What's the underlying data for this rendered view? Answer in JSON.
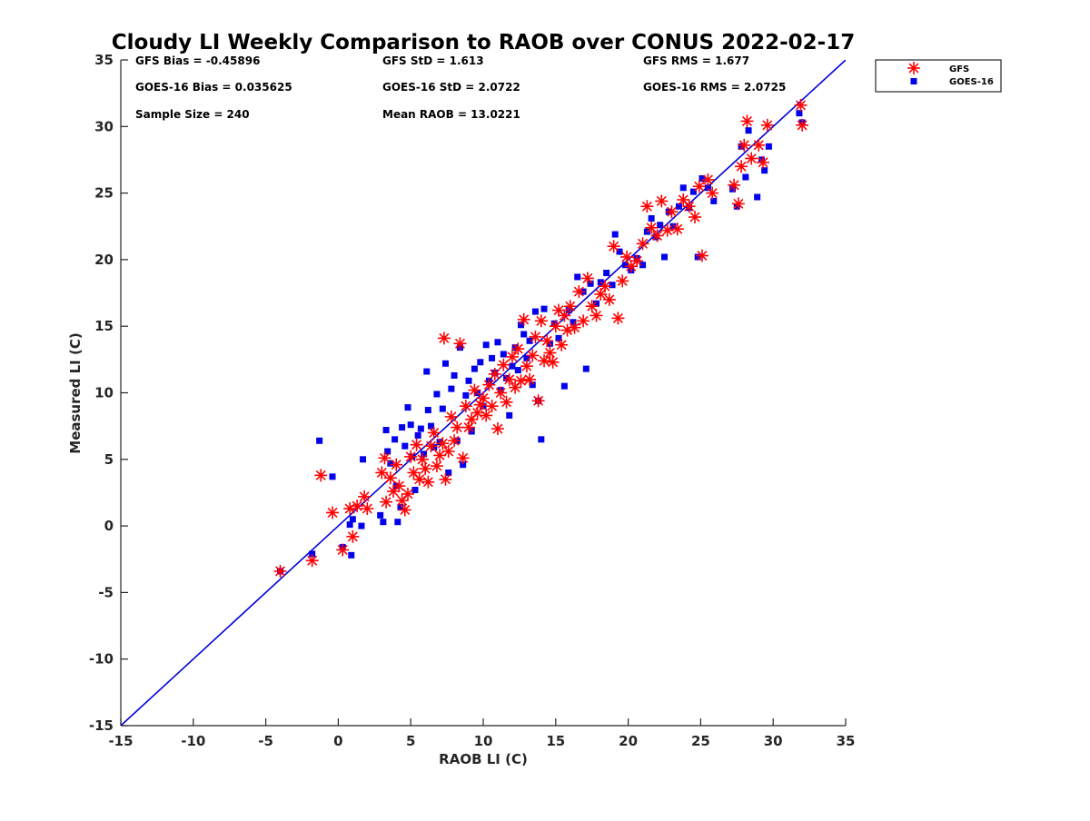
{
  "chart_data": {
    "type": "scatter",
    "title": "Cloudy LI Weekly Comparison to RAOB over CONUS 2022-02-17",
    "xlabel": "RAOB LI (C)",
    "ylabel": "Measured LI (C)",
    "xlim": [
      -15,
      35
    ],
    "ylim": [
      -15,
      35
    ],
    "xticks": [
      -15,
      -10,
      -5,
      0,
      5,
      10,
      15,
      20,
      25,
      30,
      35
    ],
    "yticks": [
      -15,
      -10,
      -5,
      0,
      5,
      10,
      15,
      20,
      25,
      30,
      35
    ],
    "grid": false,
    "legend_position": "top-right outside plot",
    "reference_line": {
      "from": [
        -15,
        -15
      ],
      "to": [
        35,
        35
      ],
      "color": "#0000dd"
    },
    "stats": {
      "gfs_bias": "GFS Bias = -0.45896",
      "goes_bias": "GOES-16 Bias = 0.035625",
      "sample_size": "Sample Size = 240",
      "gfs_std": "GFS StD = 1.613",
      "goes_std": "GOES-16 StD = 2.0722",
      "mean_raob": "Mean RAOB = 13.0221",
      "gfs_rms": "GFS RMS = 1.677",
      "goes_rms": "GOES-16 RMS = 2.0725"
    },
    "series": [
      {
        "name": "GFS",
        "marker": "asterisk",
        "color": "#ff0000",
        "points": [
          [
            -4,
            -3.4
          ],
          [
            -1.8,
            -2.6
          ],
          [
            0.3,
            -1.8
          ],
          [
            1,
            -0.8
          ],
          [
            -1.2,
            3.8
          ],
          [
            -0.4,
            1.0
          ],
          [
            0.8,
            1.3
          ],
          [
            1.3,
            1.5
          ],
          [
            1.8,
            2.2
          ],
          [
            2.0,
            1.3
          ],
          [
            3.0,
            4.0
          ],
          [
            3.2,
            5.1
          ],
          [
            3.3,
            1.8
          ],
          [
            3.6,
            3.6
          ],
          [
            3.8,
            2.6
          ],
          [
            4.0,
            4.6
          ],
          [
            4.2,
            3.0
          ],
          [
            4.4,
            1.9
          ],
          [
            4.6,
            1.2
          ],
          [
            4.8,
            2.4
          ],
          [
            5.0,
            5.2
          ],
          [
            5.2,
            4.0
          ],
          [
            5.4,
            6.1
          ],
          [
            5.6,
            3.5
          ],
          [
            5.8,
            5.0
          ],
          [
            6.0,
            4.3
          ],
          [
            6.2,
            3.3
          ],
          [
            6.4,
            6.0
          ],
          [
            6.6,
            7.0
          ],
          [
            6.8,
            4.5
          ],
          [
            7.0,
            5.3
          ],
          [
            7.2,
            6.2
          ],
          [
            7.3,
            14.1
          ],
          [
            7.4,
            3.5
          ],
          [
            7.6,
            5.6
          ],
          [
            7.8,
            8.2
          ],
          [
            8.0,
            6.4
          ],
          [
            8.2,
            7.4
          ],
          [
            8.4,
            13.7
          ],
          [
            8.6,
            5.1
          ],
          [
            8.8,
            9.0
          ],
          [
            9.0,
            7.4
          ],
          [
            9.2,
            8.0
          ],
          [
            9.4,
            10.2
          ],
          [
            9.6,
            8.5
          ],
          [
            9.8,
            9.1
          ],
          [
            10.0,
            9.6
          ],
          [
            10.2,
            8.3
          ],
          [
            10.4,
            10.6
          ],
          [
            10.6,
            9.0
          ],
          [
            10.8,
            11.4
          ],
          [
            11.0,
            7.3
          ],
          [
            11.2,
            10.0
          ],
          [
            11.4,
            12.1
          ],
          [
            11.6,
            9.3
          ],
          [
            11.8,
            11.0
          ],
          [
            12.0,
            12.7
          ],
          [
            12.2,
            10.4
          ],
          [
            12.4,
            13.3
          ],
          [
            12.6,
            10.9
          ],
          [
            12.8,
            15.5
          ],
          [
            13.0,
            12.0
          ],
          [
            13.2,
            11.0
          ],
          [
            13.4,
            12.8
          ],
          [
            13.6,
            14.2
          ],
          [
            13.8,
            9.4
          ],
          [
            14.0,
            15.4
          ],
          [
            14.2,
            12.4
          ],
          [
            14.4,
            13.9
          ],
          [
            14.6,
            13.0
          ],
          [
            14.8,
            12.3
          ],
          [
            15.0,
            15.0
          ],
          [
            15.2,
            16.2
          ],
          [
            15.4,
            13.6
          ],
          [
            15.6,
            15.8
          ],
          [
            15.8,
            14.7
          ],
          [
            16.0,
            16.5
          ],
          [
            16.3,
            14.9
          ],
          [
            16.6,
            17.6
          ],
          [
            16.9,
            15.4
          ],
          [
            17.2,
            18.6
          ],
          [
            17.5,
            16.5
          ],
          [
            17.8,
            15.8
          ],
          [
            18.1,
            17.4
          ],
          [
            18.4,
            18.0
          ],
          [
            18.7,
            17.0
          ],
          [
            19.0,
            21.0
          ],
          [
            19.3,
            15.6
          ],
          [
            19.6,
            18.4
          ],
          [
            19.9,
            20.2
          ],
          [
            20.2,
            19.5
          ],
          [
            20.6,
            19.9
          ],
          [
            21.0,
            21.2
          ],
          [
            21.3,
            24.0
          ],
          [
            21.6,
            22.4
          ],
          [
            22.0,
            21.8
          ],
          [
            22.3,
            24.4
          ],
          [
            22.7,
            22.2
          ],
          [
            23.0,
            23.6
          ],
          [
            23.4,
            22.3
          ],
          [
            23.8,
            24.5
          ],
          [
            24.2,
            24.0
          ],
          [
            24.6,
            23.2
          ],
          [
            24.9,
            25.5
          ],
          [
            25.1,
            20.3
          ],
          [
            25.5,
            26.0
          ],
          [
            25.8,
            25.0
          ],
          [
            27.3,
            25.6
          ],
          [
            27.6,
            24.2
          ],
          [
            27.8,
            27.0
          ],
          [
            28.0,
            28.6
          ],
          [
            28.2,
            30.4
          ],
          [
            28.5,
            27.6
          ],
          [
            29.0,
            28.6
          ],
          [
            29.3,
            27.3
          ],
          [
            29.6,
            30.1
          ],
          [
            31.9,
            31.6
          ],
          [
            32.0,
            30.1
          ]
        ]
      },
      {
        "name": "GOES-16",
        "marker": "square",
        "color": "#0000ee",
        "points": [
          [
            -4,
            -3.4
          ],
          [
            -1.8,
            -2.1
          ],
          [
            0.3,
            -1.6
          ],
          [
            0.9,
            -2.2
          ],
          [
            -1.3,
            6.4
          ],
          [
            -0.4,
            3.7
          ],
          [
            0.8,
            0.1
          ],
          [
            1.0,
            0.5
          ],
          [
            1.6,
            0.0
          ],
          [
            1.7,
            5.0
          ],
          [
            2.9,
            0.8
          ],
          [
            3.1,
            0.3
          ],
          [
            3.3,
            7.2
          ],
          [
            3.4,
            5.6
          ],
          [
            3.6,
            4.7
          ],
          [
            3.9,
            6.5
          ],
          [
            4.0,
            3.0
          ],
          [
            4.1,
            0.3
          ],
          [
            4.3,
            1.4
          ],
          [
            4.4,
            7.4
          ],
          [
            4.6,
            6.0
          ],
          [
            4.8,
            8.9
          ],
          [
            5.0,
            7.6
          ],
          [
            5.1,
            5.2
          ],
          [
            5.3,
            2.7
          ],
          [
            5.5,
            6.8
          ],
          [
            5.7,
            7.3
          ],
          [
            5.9,
            5.4
          ],
          [
            6.1,
            11.6
          ],
          [
            6.2,
            8.7
          ],
          [
            6.4,
            7.5
          ],
          [
            6.6,
            5.9
          ],
          [
            6.8,
            9.9
          ],
          [
            7.0,
            6.3
          ],
          [
            7.2,
            8.8
          ],
          [
            7.4,
            12.2
          ],
          [
            7.6,
            4.0
          ],
          [
            7.8,
            10.3
          ],
          [
            8.0,
            11.3
          ],
          [
            8.2,
            6.4
          ],
          [
            8.4,
            13.4
          ],
          [
            8.6,
            4.6
          ],
          [
            8.8,
            9.8
          ],
          [
            9.0,
            10.9
          ],
          [
            9.2,
            7.1
          ],
          [
            9.4,
            11.8
          ],
          [
            9.6,
            10.0
          ],
          [
            9.8,
            12.3
          ],
          [
            10.0,
            9.0
          ],
          [
            10.2,
            13.6
          ],
          [
            10.4,
            10.9
          ],
          [
            10.6,
            12.6
          ],
          [
            10.8,
            11.5
          ],
          [
            11.0,
            13.8
          ],
          [
            11.2,
            10.2
          ],
          [
            11.4,
            12.9
          ],
          [
            11.6,
            11.1
          ],
          [
            11.8,
            8.3
          ],
          [
            12.0,
            12.0
          ],
          [
            12.2,
            13.4
          ],
          [
            12.4,
            11.7
          ],
          [
            12.6,
            15.1
          ],
          [
            12.8,
            14.4
          ],
          [
            13.0,
            12.6
          ],
          [
            13.2,
            13.9
          ],
          [
            13.4,
            10.6
          ],
          [
            13.6,
            16.1
          ],
          [
            13.8,
            9.4
          ],
          [
            14.0,
            6.5
          ],
          [
            14.2,
            16.3
          ],
          [
            14.6,
            13.7
          ],
          [
            14.9,
            15.2
          ],
          [
            15.2,
            14.1
          ],
          [
            15.6,
            10.5
          ],
          [
            15.9,
            16.2
          ],
          [
            16.2,
            15.3
          ],
          [
            16.5,
            18.7
          ],
          [
            16.9,
            17.6
          ],
          [
            17.1,
            11.8
          ],
          [
            17.4,
            18.2
          ],
          [
            17.8,
            16.7
          ],
          [
            18.1,
            18.3
          ],
          [
            18.5,
            19.0
          ],
          [
            18.9,
            18.1
          ],
          [
            19.1,
            21.9
          ],
          [
            19.4,
            20.6
          ],
          [
            19.8,
            19.6
          ],
          [
            20.2,
            19.2
          ],
          [
            20.6,
            20.1
          ],
          [
            21.0,
            19.6
          ],
          [
            21.3,
            22.1
          ],
          [
            21.6,
            23.1
          ],
          [
            21.9,
            21.7
          ],
          [
            22.2,
            22.6
          ],
          [
            22.5,
            20.2
          ],
          [
            22.8,
            23.6
          ],
          [
            23.1,
            22.5
          ],
          [
            23.5,
            24.0
          ],
          [
            23.8,
            25.4
          ],
          [
            24.2,
            23.9
          ],
          [
            24.5,
            25.1
          ],
          [
            24.8,
            20.2
          ],
          [
            25.1,
            26.1
          ],
          [
            25.5,
            25.4
          ],
          [
            25.9,
            24.4
          ],
          [
            27.2,
            25.3
          ],
          [
            27.5,
            24.0
          ],
          [
            27.8,
            28.5
          ],
          [
            28.1,
            26.2
          ],
          [
            28.3,
            29.7
          ],
          [
            28.9,
            24.7
          ],
          [
            29.2,
            27.5
          ],
          [
            29.4,
            26.7
          ],
          [
            29.7,
            28.5
          ],
          [
            31.8,
            31.0
          ],
          [
            32.0,
            30.3
          ]
        ]
      }
    ]
  }
}
